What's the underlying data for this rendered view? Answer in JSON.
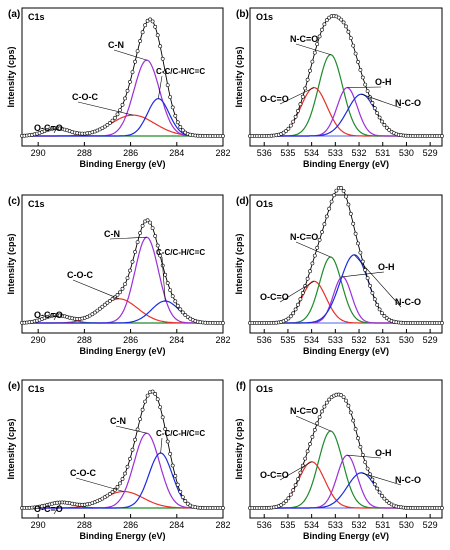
{
  "chart_data": [
    {
      "panel": "(a)",
      "core_level": "C1s",
      "type": "line",
      "xlabel": "Binding Energy (eV)",
      "ylabel": "Intensity (cps)",
      "xlim": [
        290.7,
        282.0
      ],
      "xticks": [
        290,
        288,
        286,
        284,
        282
      ],
      "components": [
        {
          "name": "O-C=O",
          "center": 289.2,
          "height": 0.07,
          "fwhm": 1.3,
          "color": "#1e8a2a"
        },
        {
          "name": "C-O-C",
          "center": 285.9,
          "height": 0.19,
          "fwhm": 2.2,
          "color": "#e8302a"
        },
        {
          "name": "C-N",
          "center": 285.3,
          "height": 0.69,
          "fwhm": 1.3,
          "color": "#9b30d9"
        },
        {
          "name": "C-C/C-H/C=C",
          "center": 284.8,
          "height": 0.34,
          "fwhm": 1.1,
          "color": "#1a2be0"
        }
      ],
      "envelope_color": "#000000"
    },
    {
      "panel": "(b)",
      "core_level": "O1s",
      "type": "line",
      "xlabel": "Binding Energy (eV)",
      "ylabel": "Intensity (cps)",
      "xlim": [
        536.6,
        528.5
      ],
      "xticks": [
        536,
        535,
        534,
        533,
        532,
        531,
        530,
        529
      ],
      "components": [
        {
          "name": "O-C=O",
          "center": 533.9,
          "height": 0.44,
          "fwhm": 1.3,
          "color": "#e8302a"
        },
        {
          "name": "N-C=O",
          "center": 533.2,
          "height": 0.74,
          "fwhm": 1.2,
          "color": "#1e8a2a"
        },
        {
          "name": "O-H",
          "center": 532.5,
          "height": 0.44,
          "fwhm": 1.0,
          "color": "#9b30d9"
        },
        {
          "name": "N-C-O",
          "center": 531.9,
          "height": 0.38,
          "fwhm": 1.4,
          "color": "#1a2be0"
        }
      ],
      "envelope_color": "#000000"
    },
    {
      "panel": "(c)",
      "core_level": "C1s",
      "type": "line",
      "xlabel": "Binding Energy (eV)",
      "ylabel": "Intensity (cps)",
      "xlim": [
        290.7,
        282.0
      ],
      "xticks": [
        290,
        288,
        286,
        284,
        282
      ],
      "components": [
        {
          "name": "O-C=O",
          "center": 289.2,
          "height": 0.07,
          "fwhm": 1.3,
          "color": "#1e8a2a"
        },
        {
          "name": "C-O-C",
          "center": 286.5,
          "height": 0.22,
          "fwhm": 1.9,
          "color": "#e8302a"
        },
        {
          "name": "C-N",
          "center": 285.3,
          "height": 0.78,
          "fwhm": 1.2,
          "color": "#9b30d9"
        },
        {
          "name": "C-C/C-H/C=C",
          "center": 284.5,
          "height": 0.2,
          "fwhm": 1.4,
          "color": "#1a2be0"
        }
      ],
      "envelope_color": "#000000"
    },
    {
      "panel": "(d)",
      "core_level": "O1s",
      "type": "line",
      "xlabel": "Binding Energy (eV)",
      "ylabel": "Intensity (cps)",
      "xlim": [
        536.6,
        528.5
      ],
      "xticks": [
        536,
        535,
        534,
        533,
        532,
        531,
        530,
        529
      ],
      "components": [
        {
          "name": "O-C=O",
          "center": 533.9,
          "height": 0.38,
          "fwhm": 1.2,
          "color": "#e8302a"
        },
        {
          "name": "N-C=O",
          "center": 533.2,
          "height": 0.6,
          "fwhm": 1.1,
          "color": "#1e8a2a"
        },
        {
          "name": "O-H",
          "center": 532.7,
          "height": 0.42,
          "fwhm": 0.9,
          "color": "#9b30d9"
        },
        {
          "name": "N-C-O",
          "center": 532.2,
          "height": 0.62,
          "fwhm": 1.4,
          "color": "#1a2be0"
        }
      ],
      "envelope_color": "#000000"
    },
    {
      "panel": "(e)",
      "core_level": "C1s",
      "type": "line",
      "xlabel": "Binding Energy (eV)",
      "ylabel": "Intensity (cps)",
      "xlim": [
        290.7,
        282.0
      ],
      "xticks": [
        290,
        288,
        286,
        284,
        282
      ],
      "components": [
        {
          "name": "O-C=O",
          "center": 289.0,
          "height": 0.05,
          "fwhm": 1.3,
          "color": "#1e8a2a"
        },
        {
          "name": "C-O-C",
          "center": 286.3,
          "height": 0.15,
          "fwhm": 2.0,
          "color": "#e8302a"
        },
        {
          "name": "C-N",
          "center": 285.3,
          "height": 0.68,
          "fwhm": 1.3,
          "color": "#9b30d9"
        },
        {
          "name": "C-C/C-H/C=C",
          "center": 284.7,
          "height": 0.5,
          "fwhm": 1.2,
          "color": "#1a2be0"
        }
      ],
      "envelope_color": "#000000"
    },
    {
      "panel": "(f)",
      "core_level": "O1s",
      "type": "line",
      "xlabel": "Binding Energy (eV)",
      "ylabel": "Intensity (cps)",
      "xlim": [
        536.6,
        528.5
      ],
      "xticks": [
        536,
        535,
        534,
        533,
        532,
        531,
        530,
        529
      ],
      "components": [
        {
          "name": "O-C=O",
          "center": 534.0,
          "height": 0.42,
          "fwhm": 1.3,
          "color": "#e8302a"
        },
        {
          "name": "N-C=O",
          "center": 533.2,
          "height": 0.7,
          "fwhm": 1.2,
          "color": "#1e8a2a"
        },
        {
          "name": "O-H",
          "center": 532.5,
          "height": 0.48,
          "fwhm": 1.0,
          "color": "#9b30d9"
        },
        {
          "name": "N-C-O",
          "center": 531.9,
          "height": 0.32,
          "fwhm": 1.4,
          "color": "#1a2be0"
        }
      ],
      "envelope_color": "#000000"
    }
  ]
}
